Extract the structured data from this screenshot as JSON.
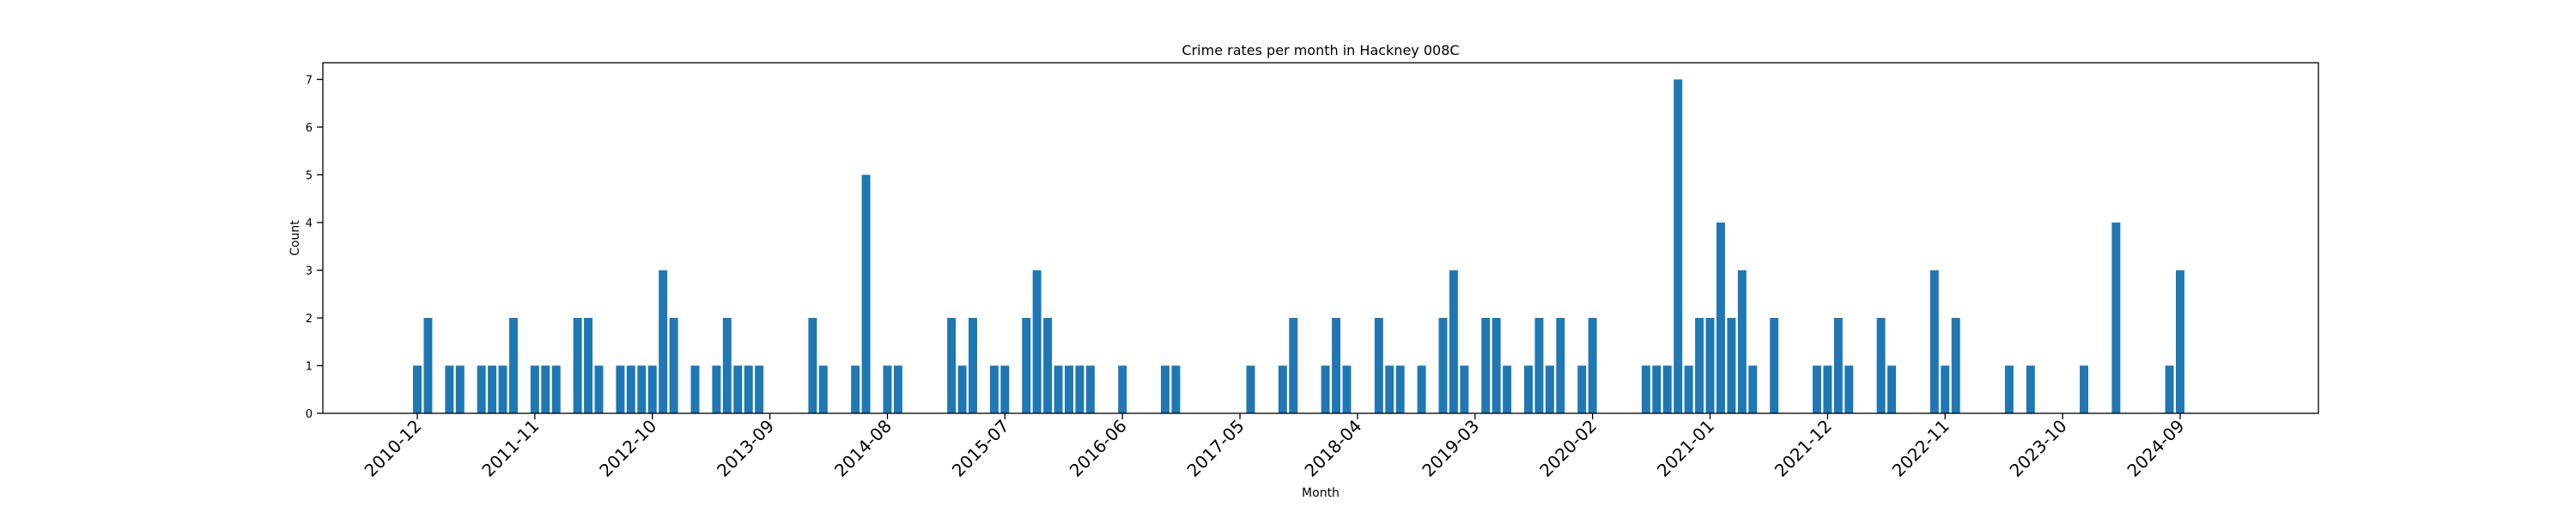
{
  "chart_data": {
    "type": "bar",
    "title": "Crime rates per month in Hackney 008C",
    "xlabel": "Month",
    "ylabel": "Count",
    "ylim": [
      0,
      7.35
    ],
    "y_ticks": [
      0,
      1,
      2,
      3,
      4,
      5,
      6,
      7
    ],
    "x_tick_labels": [
      "2010-12",
      "2011-11",
      "2012-10",
      "2013-09",
      "2014-08",
      "2015-07",
      "2016-06",
      "2017-05",
      "2018-04",
      "2019-03",
      "2020-02",
      "2021-01",
      "2021-12",
      "2022-11",
      "2023-10",
      "2024-09"
    ],
    "x": [
      "2010-12",
      "2011-01",
      "2011-03",
      "2011-04",
      "2011-06",
      "2011-07",
      "2011-08",
      "2011-09",
      "2011-11",
      "2011-12",
      "2012-01",
      "2012-03",
      "2012-04",
      "2012-05",
      "2012-07",
      "2012-08",
      "2012-09",
      "2012-10",
      "2012-11",
      "2012-12",
      "2013-02",
      "2013-04",
      "2013-05",
      "2013-06",
      "2013-07",
      "2013-08",
      "2014-01",
      "2014-02",
      "2014-05",
      "2014-06",
      "2014-08",
      "2014-09",
      "2015-02",
      "2015-03",
      "2015-04",
      "2015-06",
      "2015-07",
      "2015-09",
      "2015-10",
      "2015-11",
      "2015-12",
      "2016-01",
      "2016-02",
      "2016-03",
      "2016-06",
      "2016-10",
      "2016-11",
      "2017-06",
      "2017-09",
      "2017-10",
      "2018-01",
      "2018-02",
      "2018-03",
      "2018-06",
      "2018-07",
      "2018-08",
      "2018-10",
      "2018-12",
      "2019-01",
      "2019-02",
      "2019-04",
      "2019-05",
      "2019-06",
      "2019-08",
      "2019-09",
      "2019-10",
      "2019-11",
      "2020-01",
      "2020-02",
      "2020-07",
      "2020-08",
      "2020-09",
      "2020-10",
      "2020-11",
      "2020-12",
      "2021-01",
      "2021-02",
      "2021-03",
      "2021-04",
      "2021-05",
      "2021-07",
      "2021-11",
      "2021-12",
      "2022-01",
      "2022-02",
      "2022-05",
      "2022-06",
      "2022-10",
      "2022-11",
      "2022-12",
      "2023-05",
      "2023-07",
      "2023-12",
      "2024-03",
      "2024-08",
      "2024-09"
    ],
    "values": [
      1,
      2,
      1,
      1,
      1,
      1,
      1,
      2,
      1,
      1,
      1,
      2,
      2,
      1,
      1,
      1,
      1,
      1,
      3,
      2,
      1,
      1,
      2,
      1,
      1,
      1,
      2,
      1,
      1,
      5,
      1,
      1,
      2,
      1,
      2,
      1,
      1,
      2,
      3,
      2,
      1,
      1,
      1,
      1,
      1,
      1,
      1,
      1,
      1,
      2,
      1,
      2,
      1,
      2,
      1,
      1,
      1,
      2,
      3,
      1,
      2,
      2,
      1,
      1,
      2,
      1,
      2,
      1,
      2,
      1,
      1,
      1,
      7,
      1,
      2,
      2,
      4,
      2,
      3,
      1,
      2,
      1,
      1,
      2,
      1,
      2,
      1,
      3,
      1,
      2,
      1,
      1,
      1,
      4,
      1,
      3
    ],
    "bar_color": "#1f77b4",
    "grid": false,
    "legend": "none"
  }
}
